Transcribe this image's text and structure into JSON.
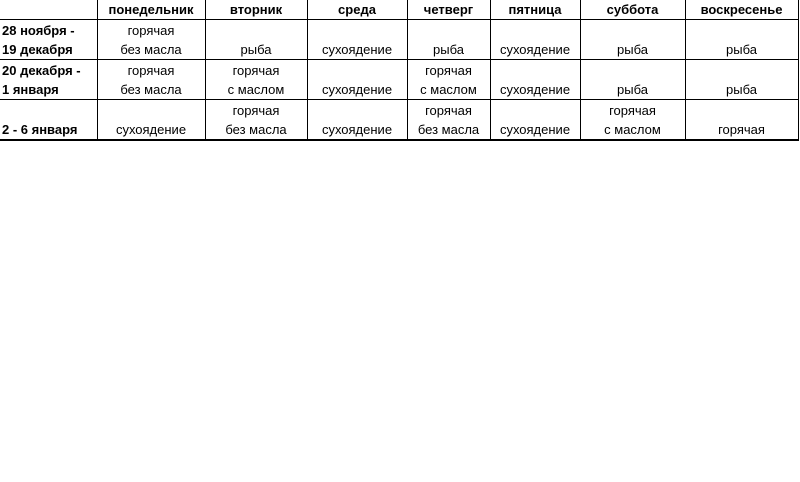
{
  "table": {
    "headers": [
      "",
      "понедельник",
      "вторник",
      "среда",
      "четверг",
      "пятница",
      "суббота",
      "воскресенье"
    ],
    "rows": [
      {
        "period": [
          "28 ноября -",
          "19  декабря"
        ],
        "cells": [
          [
            "горячая",
            "без масла"
          ],
          [
            "",
            "рыба"
          ],
          [
            "",
            "сухоядение"
          ],
          [
            "",
            "рыба"
          ],
          [
            "",
            "сухоядение"
          ],
          [
            "",
            "рыба"
          ],
          [
            "",
            "рыба"
          ]
        ]
      },
      {
        "period": [
          "20 декабря -",
          "1 января"
        ],
        "cells": [
          [
            "горячая",
            "без масла"
          ],
          [
            "горячая",
            "с маслом"
          ],
          [
            "",
            "сухоядение"
          ],
          [
            "горячая",
            "с маслом"
          ],
          [
            "",
            "сухоядение"
          ],
          [
            "",
            "рыба"
          ],
          [
            "",
            "рыба"
          ]
        ]
      },
      {
        "period": [
          "",
          "2 - 6 января"
        ],
        "cells": [
          [
            "",
            "сухоядение"
          ],
          [
            "горячая",
            "без масла"
          ],
          [
            "",
            "сухоядение"
          ],
          [
            "горячая",
            "без масла"
          ],
          [
            "",
            "сухоядение"
          ],
          [
            "горячая",
            "с маслом"
          ],
          [
            "",
            "горячая"
          ]
        ]
      }
    ]
  }
}
